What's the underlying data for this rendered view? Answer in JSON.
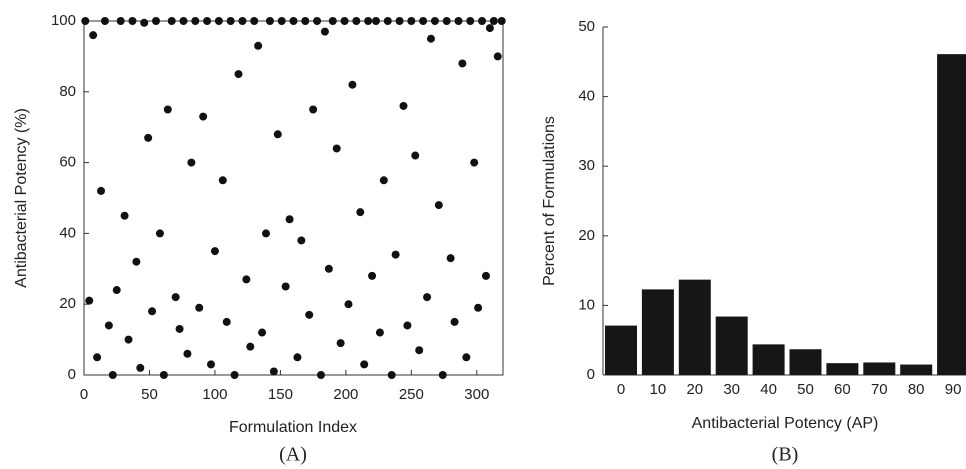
{
  "chart_data": [
    {
      "type": "scatter",
      "caption": "(A)",
      "x_label": "Formulation Index",
      "y_label": "Antibacterial Potency (%)",
      "color": "#111111",
      "xlim": [
        0,
        320
      ],
      "xticks": [
        0,
        50,
        100,
        150,
        200,
        250,
        300
      ],
      "ylim": [
        0,
        100
      ],
      "yticks": [
        0,
        20,
        40,
        60,
        80,
        100
      ],
      "x": [
        1,
        4,
        7,
        10,
        13,
        16,
        19,
        22,
        25,
        28,
        31,
        34,
        37,
        40,
        43,
        46,
        49,
        52,
        55,
        58,
        61,
        64,
        67,
        70,
        73,
        76,
        79,
        82,
        85,
        88,
        91,
        94,
        97,
        100,
        103,
        106,
        109,
        112,
        115,
        118,
        121,
        124,
        127,
        130,
        133,
        136,
        139,
        142,
        145,
        148,
        151,
        154,
        157,
        160,
        163,
        166,
        169,
        172,
        175,
        178,
        181,
        184,
        187,
        190,
        193,
        196,
        199,
        202,
        205,
        208,
        211,
        214,
        217,
        220,
        223,
        226,
        229,
        232,
        235,
        238,
        241,
        244,
        247,
        250,
        253,
        256,
        259,
        262,
        265,
        268,
        271,
        274,
        277,
        280,
        283,
        286,
        289,
        292,
        295,
        298,
        301,
        304,
        307,
        310,
        313,
        316,
        319
      ],
      "values": [
        100,
        21,
        96,
        5,
        52,
        100,
        14,
        0,
        24,
        100,
        45,
        10,
        100,
        32,
        2,
        99.5,
        67,
        18,
        100,
        40,
        0,
        75,
        100,
        22,
        13,
        100,
        6,
        60,
        100,
        19,
        73,
        100,
        3,
        35,
        100,
        55,
        15,
        100,
        0,
        85,
        100,
        27,
        8,
        100,
        93,
        12,
        40,
        100,
        1,
        68,
        100,
        25,
        44,
        100,
        5,
        38,
        100,
        17,
        75,
        100,
        0,
        97,
        30,
        100,
        64,
        9,
        100,
        20,
        82,
        100,
        46,
        3,
        100,
        28,
        100,
        12,
        55,
        100,
        0,
        34,
        100,
        76,
        14,
        100,
        62,
        7,
        100,
        22,
        95,
        100,
        48,
        0,
        100,
        33,
        15,
        100,
        88,
        5,
        100,
        60,
        19,
        100,
        28,
        98,
        100,
        90,
        100
      ]
    },
    {
      "type": "bar",
      "caption": "(B)",
      "x_label": "Antibacterial Potency (AP)",
      "y_label": "Percent of Formulations",
      "color": "#161616",
      "categories": [
        "0",
        "10",
        "20",
        "30",
        "40",
        "50",
        "60",
        "70",
        "80",
        "90"
      ],
      "values": [
        7.1,
        12.3,
        13.7,
        8.4,
        4.4,
        3.7,
        1.7,
        1.8,
        1.5,
        46.1
      ],
      "ylim": [
        0,
        50
      ],
      "yticks": [
        0,
        10,
        20,
        30,
        40,
        50
      ]
    }
  ]
}
